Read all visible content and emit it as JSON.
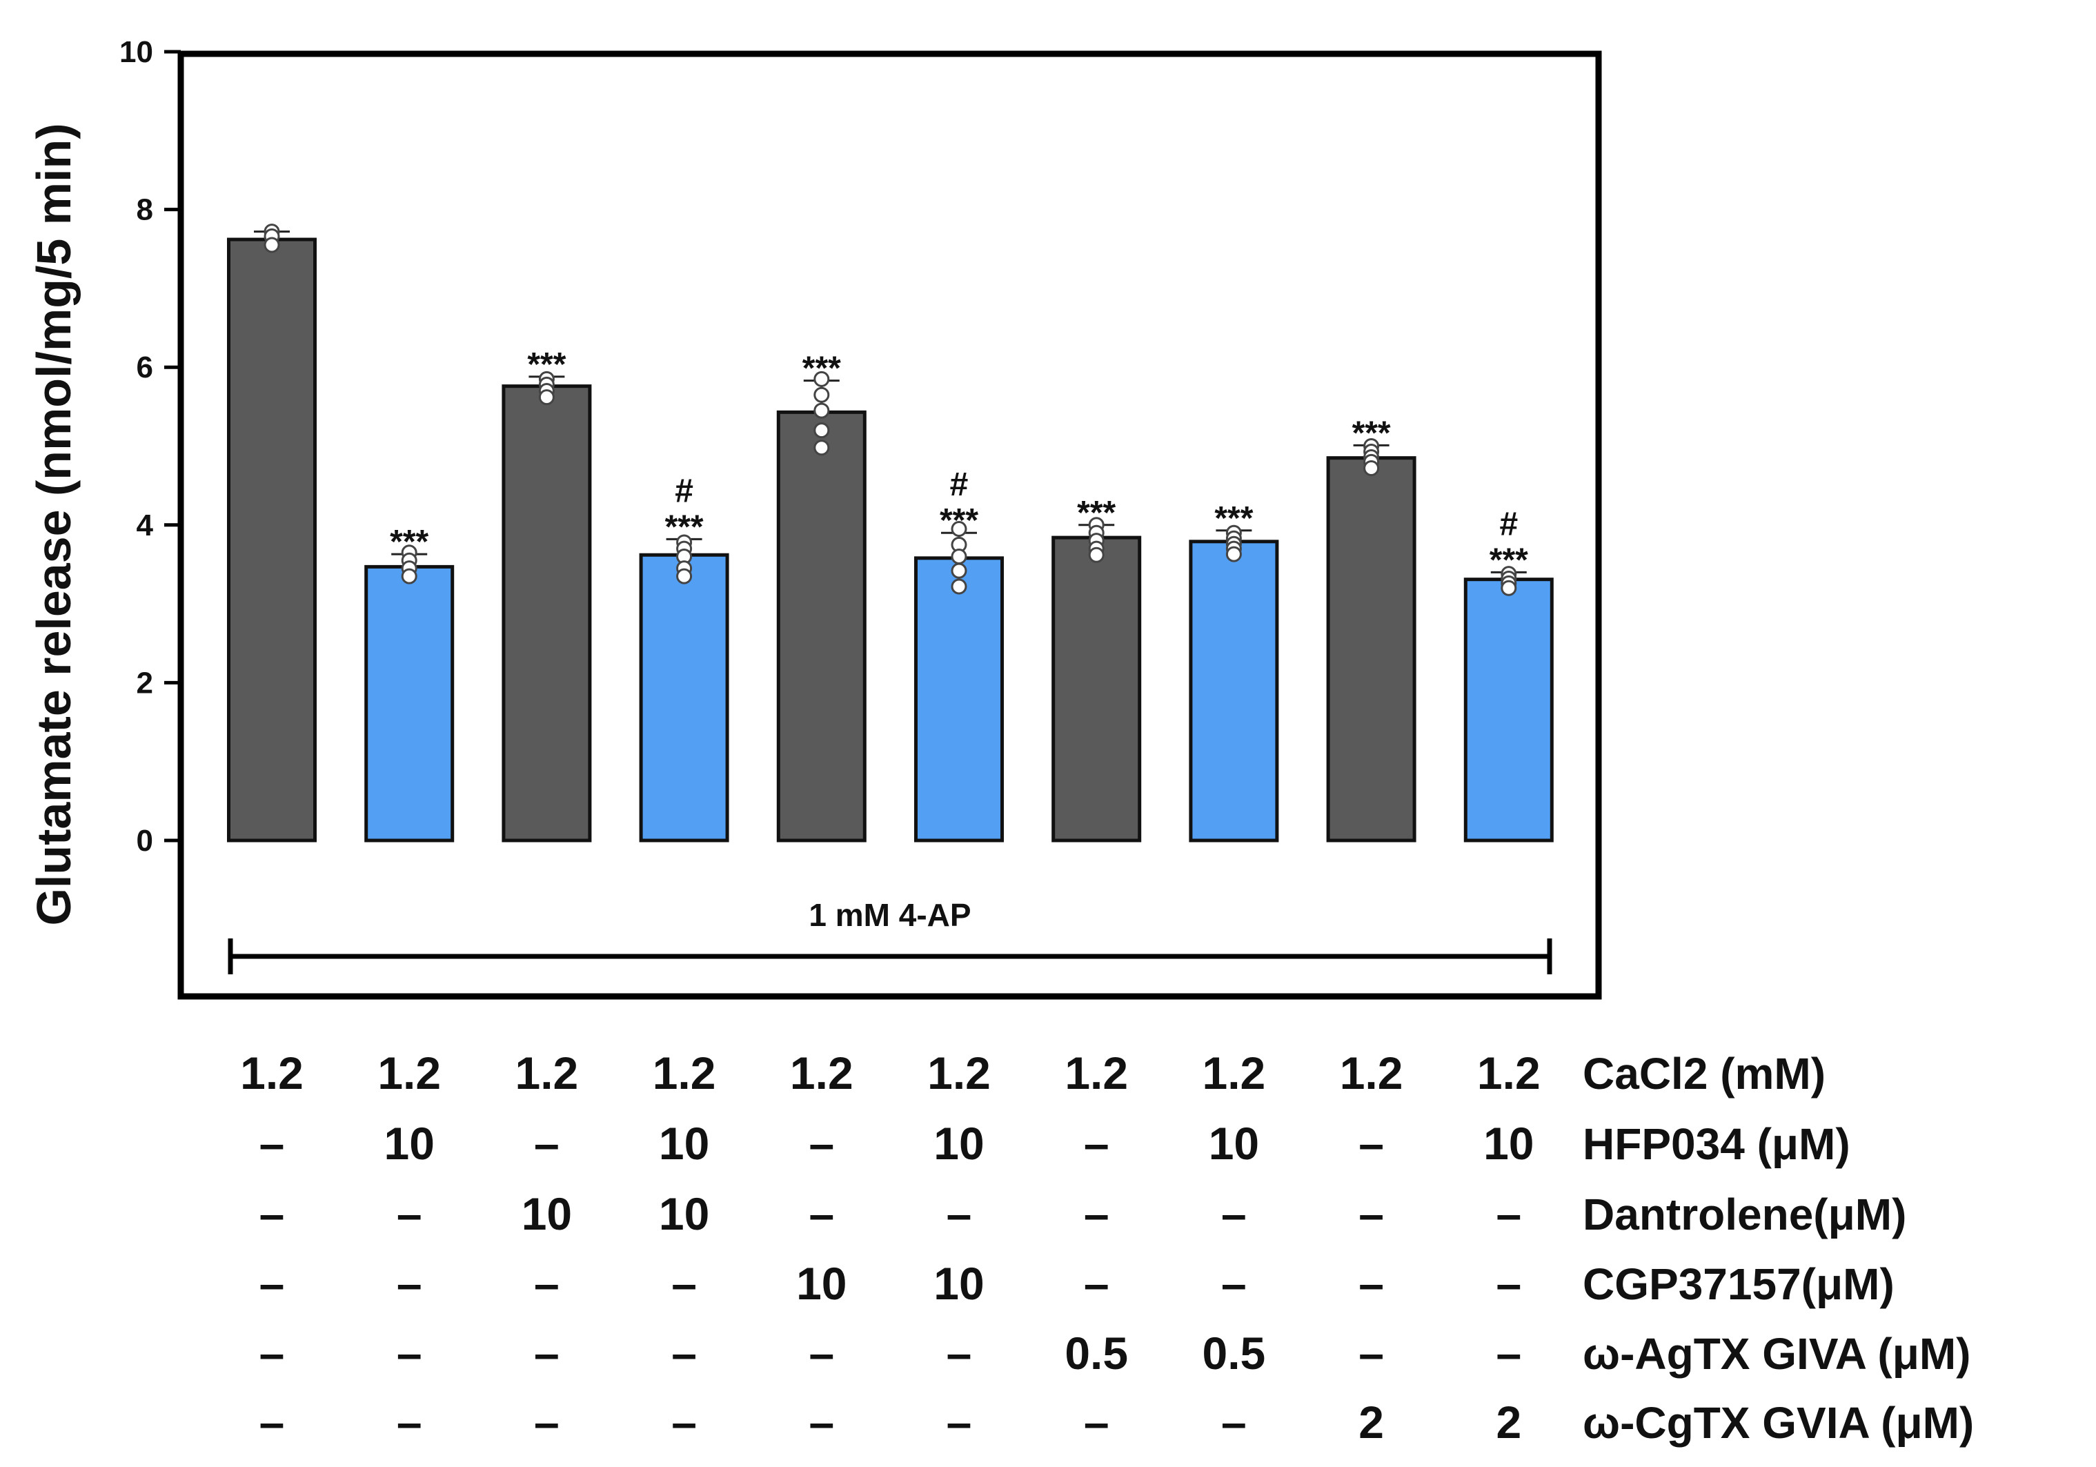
{
  "chart_data": {
    "type": "bar",
    "ylabel": "Glutamate release (nmol/mg/5 min)",
    "ylim": [
      -2,
      10
    ],
    "yticks": [
      0,
      2,
      4,
      6,
      8,
      10
    ],
    "grid": false,
    "bracket_label": "1 mM 4-AP",
    "bars": [
      {
        "value": 7.62,
        "error": 0.1,
        "color": "#5a5a5a",
        "sig": "",
        "hash": "",
        "points": [
          7.72,
          7.66,
          7.55
        ]
      },
      {
        "value": 3.47,
        "error": 0.16,
        "color": "#529ff4",
        "sig": "***",
        "hash": "",
        "points": [
          3.65,
          3.55,
          3.45,
          3.35
        ]
      },
      {
        "value": 5.76,
        "error": 0.12,
        "color": "#5a5a5a",
        "sig": "***",
        "hash": "",
        "points": [
          5.85,
          5.78,
          5.7,
          5.62
        ]
      },
      {
        "value": 3.62,
        "error": 0.2,
        "color": "#529ff4",
        "sig": "***",
        "hash": "#",
        "points": [
          3.78,
          3.7,
          3.6,
          3.45,
          3.35
        ]
      },
      {
        "value": 5.43,
        "error": 0.4,
        "color": "#5a5a5a",
        "sig": "***",
        "hash": "",
        "points": [
          5.85,
          5.65,
          5.45,
          5.2,
          4.98
        ]
      },
      {
        "value": 3.58,
        "error": 0.32,
        "color": "#529ff4",
        "sig": "***",
        "hash": "#",
        "points": [
          3.95,
          3.75,
          3.6,
          3.42,
          3.22
        ]
      },
      {
        "value": 3.84,
        "error": 0.16,
        "color": "#5a5a5a",
        "sig": "***",
        "hash": "",
        "points": [
          4.0,
          3.9,
          3.8,
          3.7,
          3.62
        ]
      },
      {
        "value": 3.79,
        "error": 0.14,
        "color": "#529ff4",
        "sig": "***",
        "hash": "",
        "points": [
          3.9,
          3.83,
          3.76,
          3.7,
          3.63
        ]
      },
      {
        "value": 4.85,
        "error": 0.16,
        "color": "#5a5a5a",
        "sig": "***",
        "hash": "",
        "points": [
          5.0,
          4.93,
          4.86,
          4.8,
          4.72
        ]
      },
      {
        "value": 3.31,
        "error": 0.09,
        "color": "#529ff4",
        "sig": "***",
        "hash": "#",
        "points": [
          3.38,
          3.32,
          3.26,
          3.2
        ]
      }
    ],
    "conditions": [
      {
        "label": "CaCl2 (mM)",
        "values": [
          "1.2",
          "1.2",
          "1.2",
          "1.2",
          "1.2",
          "1.2",
          "1.2",
          "1.2",
          "1.2",
          "1.2"
        ]
      },
      {
        "label": "HFP034 (μM)",
        "values": [
          "–",
          "10",
          "–",
          "10",
          "–",
          "10",
          "–",
          "10",
          "–",
          "10"
        ]
      },
      {
        "label": "Dantrolene(μM)",
        "values": [
          "–",
          "–",
          "10",
          "10",
          "–",
          "–",
          "–",
          "–",
          "–",
          "–"
        ]
      },
      {
        "label": "CGP37157(μM)",
        "values": [
          "–",
          "–",
          "–",
          "–",
          "10",
          "10",
          "–",
          "–",
          "–",
          "–"
        ]
      },
      {
        "label": "ω-AgTX GIVA (μM)",
        "values": [
          "–",
          "–",
          "–",
          "–",
          "–",
          "–",
          "0.5",
          "0.5",
          "–",
          "–"
        ]
      },
      {
        "label": "ω-CgTX GVIA (μM)",
        "values": [
          "–",
          "–",
          "–",
          "–",
          "–",
          "–",
          "–",
          "–",
          "2",
          "2"
        ]
      }
    ]
  }
}
